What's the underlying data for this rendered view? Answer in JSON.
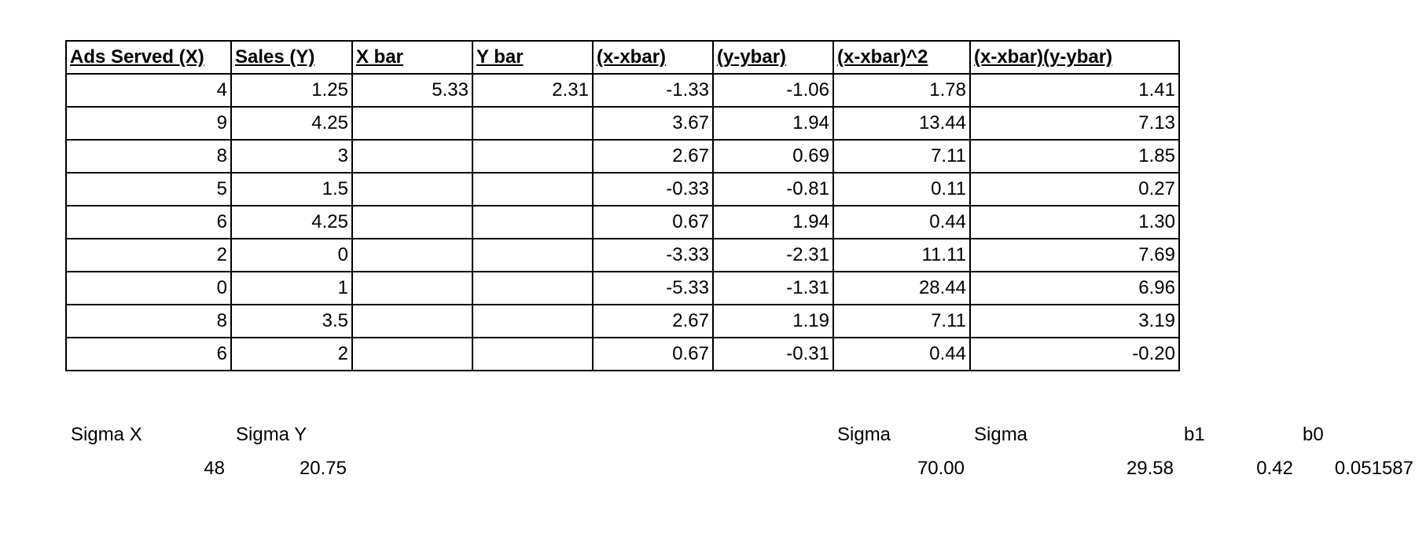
{
  "table": {
    "headers": [
      "Ads Served (X)",
      "Sales (Y)",
      "X bar",
      "Y bar",
      "(x-xbar)",
      "(y-ybar)",
      "(x-xbar)^2",
      "(x-xbar)(y-ybar)"
    ],
    "rows": [
      [
        "4",
        "1.25",
        "5.33",
        "2.31",
        "-1.33",
        "-1.06",
        "1.78",
        "1.41"
      ],
      [
        "9",
        "4.25",
        "",
        "",
        "3.67",
        "1.94",
        "13.44",
        "7.13"
      ],
      [
        "8",
        "3",
        "",
        "",
        "2.67",
        "0.69",
        "7.11",
        "1.85"
      ],
      [
        "5",
        "1.5",
        "",
        "",
        "-0.33",
        "-0.81",
        "0.11",
        "0.27"
      ],
      [
        "6",
        "4.25",
        "",
        "",
        "0.67",
        "1.94",
        "0.44",
        "1.30"
      ],
      [
        "2",
        "0",
        "",
        "",
        "-3.33",
        "-2.31",
        "11.11",
        "7.69"
      ],
      [
        "0",
        "1",
        "",
        "",
        "-5.33",
        "-1.31",
        "28.44",
        "6.96"
      ],
      [
        "8",
        "3.5",
        "",
        "",
        "2.67",
        "1.19",
        "7.11",
        "3.19"
      ],
      [
        "6",
        "2",
        "",
        "",
        "0.67",
        "-0.31",
        "0.44",
        "-0.20"
      ]
    ]
  },
  "summary": {
    "labels": [
      "Sigma X",
      "Sigma Y",
      "Sigma",
      "Sigma",
      "b1",
      "b0"
    ],
    "values": [
      "48",
      "20.75",
      "70.00",
      "29.58",
      "0.42",
      "0.051587"
    ]
  }
}
